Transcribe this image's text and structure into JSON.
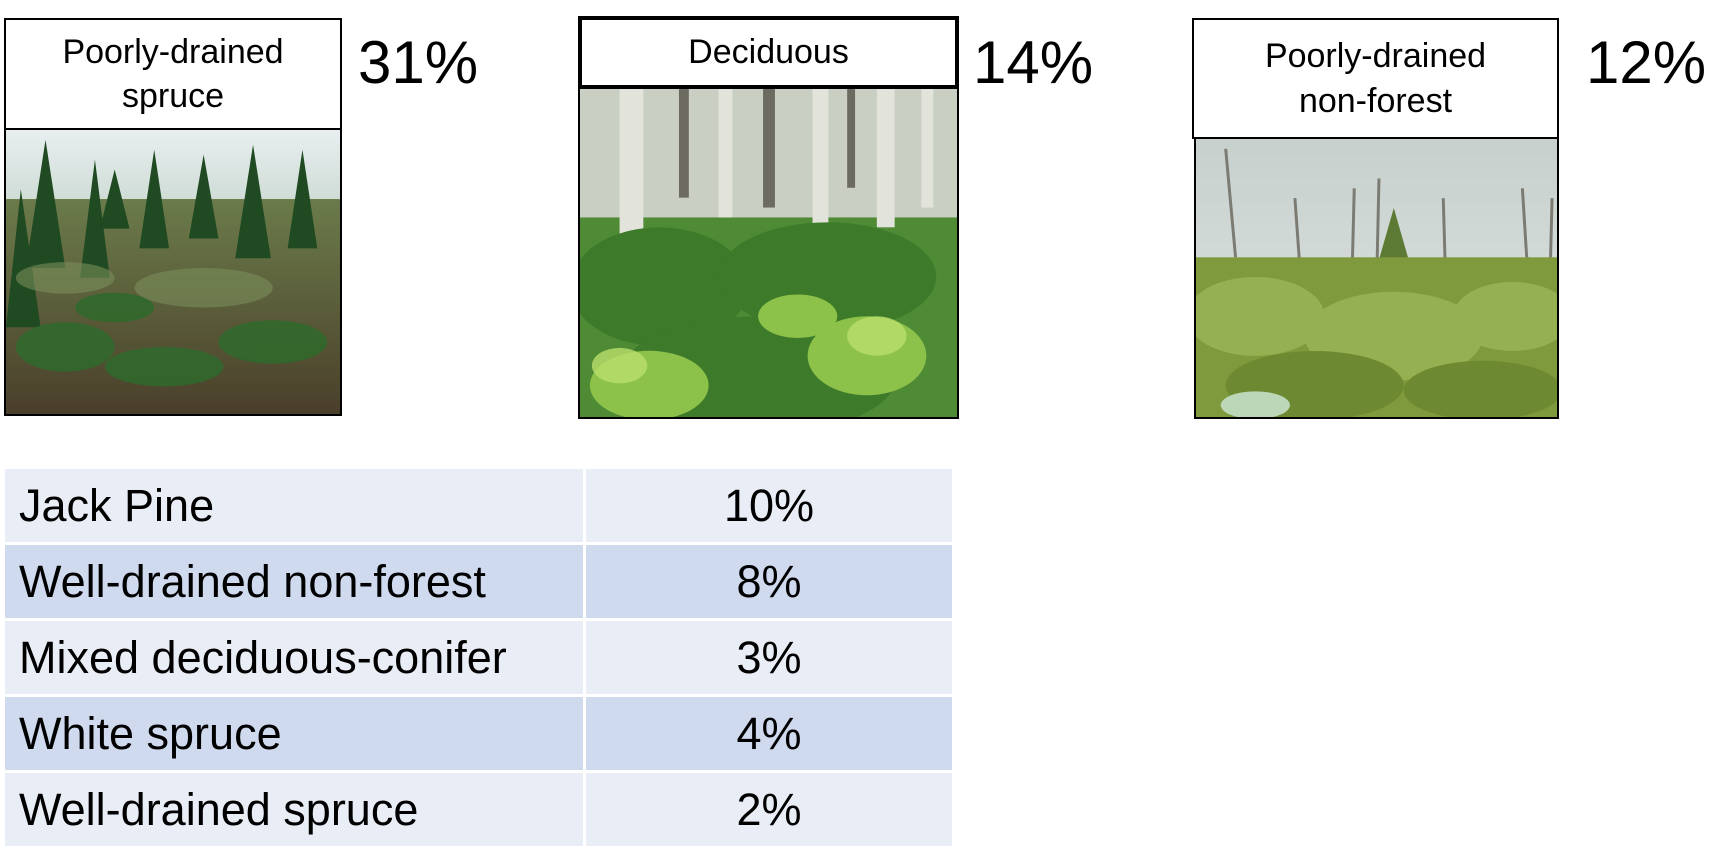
{
  "cards": [
    {
      "label_line1": "Poorly-drained",
      "label_line2": "spruce",
      "percent": "31%",
      "photo_icon": "spruce-bog-photo"
    },
    {
      "label_line1": "Deciduous",
      "label_line2": "",
      "percent": "14%",
      "photo_icon": "deciduous-forest-photo"
    },
    {
      "label_line1": "Poorly-drained",
      "label_line2": "non-forest",
      "percent": "12%",
      "photo_icon": "shrubland-photo"
    }
  ],
  "table": {
    "rows": [
      {
        "name": "Jack Pine",
        "value": "10%"
      },
      {
        "name": "Well-drained non-forest",
        "value": "8%"
      },
      {
        "name": "Mixed deciduous-conifer",
        "value": "3%"
      },
      {
        "name": "White spruce",
        "value": "4%"
      },
      {
        "name": "Well-drained spruce",
        "value": "2%"
      }
    ]
  },
  "colors": {
    "row_light": "#e9edf6",
    "row_dark": "#cfdaee"
  }
}
